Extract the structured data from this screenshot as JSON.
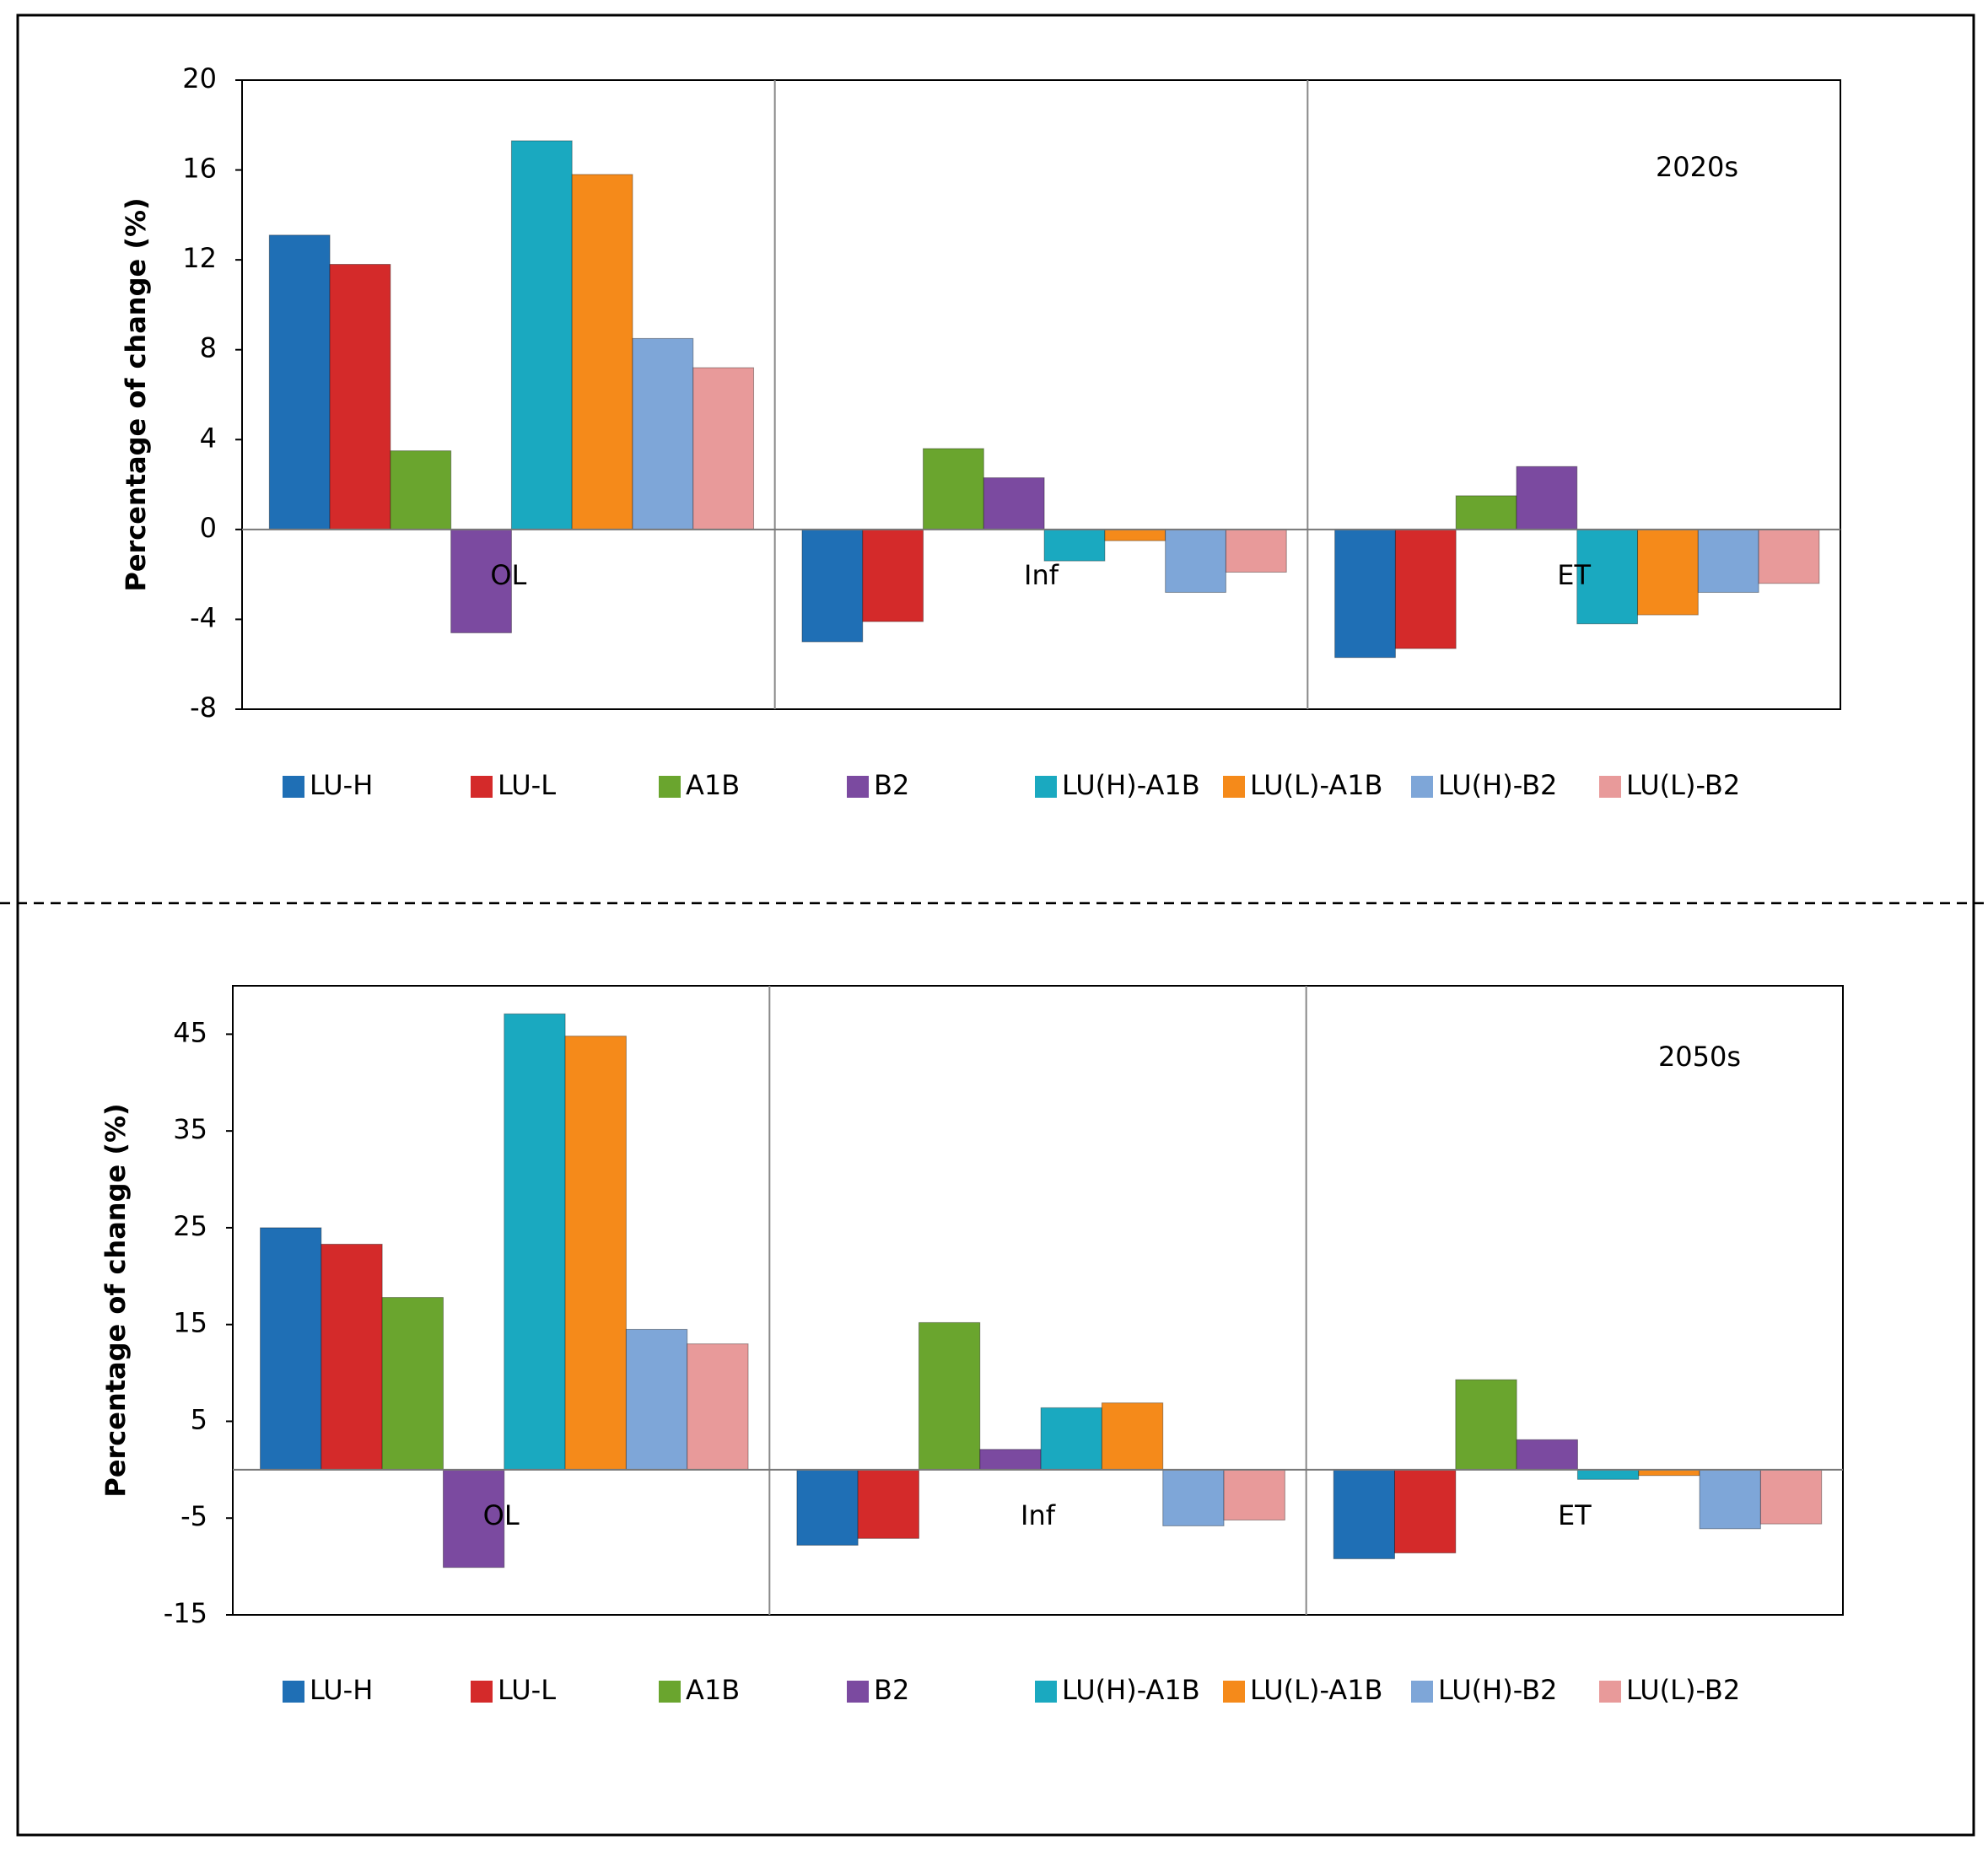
{
  "chart_data": [
    {
      "type": "bar",
      "annotation": "2020s",
      "y_label": "Percentage of change  (%)",
      "categories": [
        "OL",
        "Inf",
        "ET"
      ],
      "ylim": [
        -8,
        20
      ],
      "yticks": [
        -8,
        -4,
        0,
        4,
        8,
        12,
        16,
        20
      ],
      "series": [
        {
          "name": "LU-H",
          "color": "#1f6fb5",
          "values": [
            13.1,
            -5.0,
            -5.7
          ]
        },
        {
          "name": "LU-L",
          "color": "#d42a2a",
          "values": [
            11.8,
            -4.1,
            -5.3
          ]
        },
        {
          "name": "A1B",
          "color": "#6aa52e",
          "values": [
            3.5,
            3.6,
            1.5
          ]
        },
        {
          "name": "B2",
          "color": "#7b4aa0",
          "values": [
            -4.6,
            2.3,
            2.8
          ]
        },
        {
          "name": "LU(H)-A1B",
          "color": "#1aa9c0",
          "values": [
            17.3,
            -1.4,
            -4.2
          ]
        },
        {
          "name": "LU(L)-A1B",
          "color": "#f58a1a",
          "values": [
            15.8,
            -0.5,
            -3.8
          ]
        },
        {
          "name": "LU(H)-B2",
          "color": "#7ea6d8",
          "values": [
            8.5,
            -2.8,
            -2.8
          ]
        },
        {
          "name": "LU(L)-B2",
          "color": "#e89a9a",
          "values": [
            7.2,
            -1.9,
            -2.4
          ]
        }
      ]
    },
    {
      "type": "bar",
      "annotation": "2050s",
      "y_label": "Percentage of change  (%)",
      "categories": [
        "OL",
        "Inf",
        "ET"
      ],
      "ylim": [
        -15,
        50
      ],
      "yticks": [
        -15,
        -5,
        5,
        15,
        25,
        35,
        45
      ],
      "series": [
        {
          "name": "LU-H",
          "color": "#1f6fb5",
          "values": [
            25.0,
            -7.8,
            -9.2
          ]
        },
        {
          "name": "LU-L",
          "color": "#d42a2a",
          "values": [
            23.3,
            -7.1,
            -8.6
          ]
        },
        {
          "name": "A1B",
          "color": "#6aa52e",
          "values": [
            17.8,
            15.2,
            9.3
          ]
        },
        {
          "name": "B2",
          "color": "#7b4aa0",
          "values": [
            -10.1,
            2.1,
            3.1
          ]
        },
        {
          "name": "LU(H)-A1B",
          "color": "#1aa9c0",
          "values": [
            47.1,
            6.4,
            -1.0
          ]
        },
        {
          "name": "LU(L)-A1B",
          "color": "#f58a1a",
          "values": [
            44.8,
            6.9,
            -0.6
          ]
        },
        {
          "name": "LU(H)-B2",
          "color": "#7ea6d8",
          "values": [
            14.5,
            -5.8,
            -6.1
          ]
        },
        {
          "name": "LU(L)-B2",
          "color": "#e89a9a",
          "values": [
            13.0,
            -5.2,
            -5.6
          ]
        }
      ]
    }
  ]
}
